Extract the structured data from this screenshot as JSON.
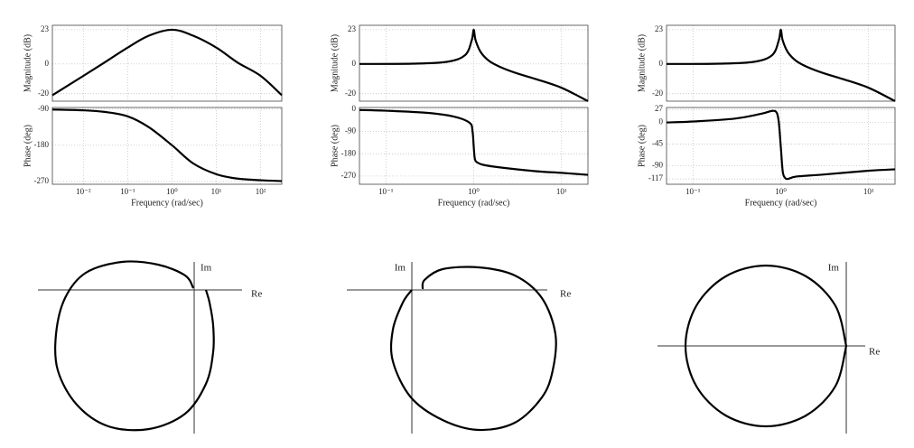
{
  "chart_data": [
    {
      "type": "line",
      "ylabel": "Magnitude (dB)",
      "xscale": "log",
      "xlim": [
        0.002,
        300
      ],
      "ylim": [
        -25,
        26
      ],
      "yticks": [
        -20,
        0,
        23
      ],
      "grid": true,
      "color": "#000000",
      "x": [
        0.002,
        0.01,
        0.03,
        0.1,
        0.3,
        1,
        3,
        10,
        30,
        100,
        300
      ],
      "values": [
        -21,
        -8,
        1,
        11,
        19,
        23,
        19,
        11,
        1,
        -8,
        -21
      ]
    },
    {
      "type": "line",
      "ylabel": "Phase (deg)",
      "xlabel": "Frequency (rad/sec)",
      "xscale": "log",
      "xlim": [
        0.002,
        300
      ],
      "ylim": [
        -277,
        -86
      ],
      "yticks": [
        -270,
        -180,
        -90
      ],
      "grid": true,
      "color": "#000000",
      "xticks": [
        {
          "value": 0.01,
          "label": "10⁻²"
        },
        {
          "value": 0.1,
          "label": "10⁻¹"
        },
        {
          "value": 1,
          "label": "10⁰"
        },
        {
          "value": 10,
          "label": "10¹"
        },
        {
          "value": 100,
          "label": "10²"
        }
      ],
      "x": [
        0.002,
        0.01,
        0.03,
        0.1,
        0.3,
        1,
        3,
        10,
        30,
        100,
        300
      ],
      "values": [
        -91,
        -93,
        -97,
        -108,
        -135,
        -180,
        -225,
        -252,
        -263,
        -267,
        -269
      ]
    },
    {
      "type": "line",
      "ylabel": "Magnitude (dB)",
      "xscale": "log",
      "xlim": [
        0.05,
        20
      ],
      "ylim": [
        -25,
        26
      ],
      "yticks": [
        -20,
        0,
        23
      ],
      "grid": true,
      "color": "#000000",
      "x": [
        0.05,
        0.2,
        0.5,
        0.8,
        0.95,
        1,
        1.05,
        1.2,
        1.5,
        2,
        3,
        5,
        10,
        20
      ],
      "values": [
        0,
        0.2,
        1.5,
        6,
        16,
        23,
        16,
        8,
        2,
        -2,
        -6,
        -10,
        -16,
        -25
      ]
    },
    {
      "type": "line",
      "ylabel": "Phase (deg)",
      "xlabel": "Frequency (rad/sec)",
      "xscale": "log",
      "xlim": [
        0.05,
        20
      ],
      "ylim": [
        -303,
        7
      ],
      "yticks": [
        -270,
        -180,
        -90,
        0
      ],
      "grid": true,
      "color": "#000000",
      "xticks": [
        {
          "value": 0.1,
          "label": "10⁻¹"
        },
        {
          "value": 1,
          "label": "10⁰"
        },
        {
          "value": 10,
          "label": "10¹"
        }
      ],
      "x": [
        0.05,
        0.1,
        0.3,
        0.6,
        0.9,
        0.97,
        1,
        1.03,
        1.1,
        1.3,
        2,
        5,
        10,
        20
      ],
      "values": [
        -3,
        -6,
        -15,
        -30,
        -55,
        -90,
        -150,
        -200,
        -215,
        -225,
        -235,
        -250,
        -257,
        -265
      ]
    },
    {
      "type": "line",
      "ylabel": "Magnitude (dB)",
      "xscale": "log",
      "xlim": [
        0.05,
        20
      ],
      "ylim": [
        -25,
        26
      ],
      "yticks": [
        -20,
        0,
        23
      ],
      "grid": true,
      "color": "#000000",
      "x": [
        0.05,
        0.2,
        0.5,
        0.8,
        0.95,
        1,
        1.05,
        1.2,
        1.5,
        2,
        3,
        5,
        10,
        20
      ],
      "values": [
        0,
        0.2,
        1.5,
        6,
        16,
        23,
        16,
        8,
        2,
        -2,
        -6,
        -10,
        -16,
        -25
      ]
    },
    {
      "type": "line",
      "ylabel": "Phase (deg)",
      "xlabel": "Frequency (rad/sec)",
      "xscale": "log",
      "xlim": [
        0.05,
        20
      ],
      "ylim": [
        -128,
        31
      ],
      "yticks": [
        -117,
        -90,
        -45,
        0,
        27
      ],
      "grid": true,
      "color": "#000000",
      "xticks": [
        {
          "value": 0.1,
          "label": "10⁻¹"
        },
        {
          "value": 1,
          "label": "10⁰"
        },
        {
          "value": 10,
          "label": "10¹"
        }
      ],
      "x": [
        0.05,
        0.1,
        0.3,
        0.6,
        0.8,
        0.9,
        0.95,
        1,
        1.05,
        1.1,
        1.2,
        1.5,
        3,
        10,
        20
      ],
      "values": [
        0,
        2,
        8,
        18,
        24,
        20,
        0,
        -50,
        -100,
        -113,
        -117,
        -112,
        -108,
        -100,
        -97
      ]
    },
    {
      "type": "nyquist",
      "xlabel": "Re",
      "ylabel": "Im",
      "xlim": [
        -1.73,
        0.53
      ],
      "ylim": [
        -1.59,
        0.31
      ],
      "color": "#000000",
      "x": [
        0.13,
        0.17,
        0.21,
        0.21,
        0.13,
        -0.1,
        -0.5,
        -0.95,
        -1.3,
        -1.51,
        -1.53,
        -1.43,
        -1.2,
        -0.8,
        -0.4,
        -0.1,
        -0.01
      ],
      "values": [
        0,
        -0.14,
        -0.39,
        -0.69,
        -1.04,
        -1.37,
        -1.54,
        -1.51,
        -1.27,
        -0.89,
        -0.49,
        -0.09,
        0.19,
        0.31,
        0.28,
        0.16,
        0.02
      ]
    },
    {
      "type": "nyquist",
      "xlabel": "Re",
      "ylabel": "Im",
      "xlim": [
        -0.72,
        1.5
      ],
      "ylim": [
        -1.59,
        0.31
      ],
      "color": "#000000",
      "x": [
        0.12,
        0.14,
        0.34,
        0.74,
        1.14,
        1.44,
        1.59,
        1.56,
        1.44,
        1.14,
        0.74,
        0.34,
        -0.01,
        -0.21,
        -0.21,
        -0.1,
        0
      ],
      "values": [
        0.01,
        0.11,
        0.23,
        0.25,
        0.16,
        -0.09,
        -0.49,
        -0.89,
        -1.19,
        -1.47,
        -1.55,
        -1.44,
        -1.19,
        -0.79,
        -0.44,
        -0.14,
        0
      ]
    },
    {
      "type": "nyquist",
      "xlabel": "Re",
      "ylabel": "Im",
      "xlim": [
        -2.09,
        0.21
      ],
      "ylim": [
        -0.97,
        0.93
      ],
      "color": "#000000",
      "x": [
        0,
        -0.12,
        -0.445,
        -0.89,
        -1.335,
        -1.66,
        -1.78,
        -1.66,
        -1.335,
        -0.89,
        -0.445,
        -0.12,
        0
      ],
      "values": [
        0,
        0.445,
        0.77,
        0.89,
        0.77,
        0.445,
        0,
        -0.445,
        -0.77,
        -0.89,
        -0.77,
        -0.445,
        0
      ]
    }
  ]
}
